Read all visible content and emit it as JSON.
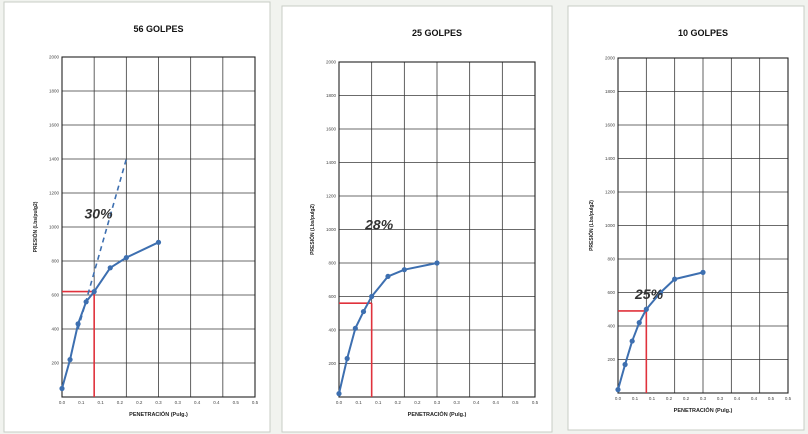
{
  "colors": {
    "curve": "#3d6fb0",
    "reference": "#e0323c",
    "grid": "#3a3a3a"
  },
  "chart_data": [
    {
      "type": "line",
      "title": "56 GOLPES",
      "xlabel": "PENETRACIÓN (Pulg.)",
      "ylabel": "PRESIÓN (Lbs/pulg2)",
      "xlim": [
        0,
        0.6
      ],
      "ylim": [
        0,
        2000
      ],
      "xticks": [
        "0.0",
        "0.1",
        "0.1",
        "0.2",
        "0.2",
        "0.3",
        "0.3",
        "0.4",
        "0.4",
        "0.5",
        "0.5"
      ],
      "yticks": [
        "200",
        "400",
        "600",
        "800",
        "1000",
        "1200",
        "1400",
        "1600",
        "1800",
        "2000"
      ],
      "grid": true,
      "series": [
        {
          "x": [
            0,
            0.025,
            0.05,
            0.075,
            0.1,
            0.15,
            0.2,
            0.3
          ],
          "y": [
            50,
            220,
            430,
            560,
            620,
            760,
            820,
            910
          ]
        }
      ],
      "tangent": {
        "x": [
          0.05,
          0.2
        ],
        "y": [
          400,
          1400
        ]
      },
      "reference": {
        "x": 0.1,
        "y": 620
      },
      "annotation": {
        "text": "30%",
        "x": 0.07,
        "y": 1050
      }
    },
    {
      "type": "line",
      "title": "25 GOLPES",
      "xlabel": "PENETRACIÓN (Pulg.)",
      "ylabel": "PRESIÓN (Lbs/pulg2)",
      "xlim": [
        0,
        0.6
      ],
      "ylim": [
        0,
        2000
      ],
      "xticks": [
        "0.0",
        "0.1",
        "0.1",
        "0.2",
        "0.2",
        "0.3",
        "0.3",
        "0.4",
        "0.4",
        "0.5",
        "0.5"
      ],
      "yticks": [
        "200",
        "400",
        "600",
        "800",
        "1000",
        "1200",
        "1400",
        "1600",
        "1800",
        "2000"
      ],
      "grid": true,
      "series": [
        {
          "x": [
            0,
            0.025,
            0.05,
            0.075,
            0.1,
            0.15,
            0.2,
            0.3
          ],
          "y": [
            20,
            230,
            410,
            510,
            600,
            720,
            760,
            800
          ]
        }
      ],
      "reference": {
        "x": 0.1,
        "y": 560
      },
      "annotation": {
        "text": "28%",
        "x": 0.08,
        "y": 1000
      }
    },
    {
      "type": "line",
      "title": "10 GOLPES",
      "xlabel": "PENETRACIÓN (Pulg.)",
      "ylabel": "PRESIÓN (Lbs/pulg2)",
      "xlim": [
        0,
        0.6
      ],
      "ylim": [
        0,
        2000
      ],
      "xticks": [
        "0.0",
        "0.1",
        "0.1",
        "0.2",
        "0.2",
        "0.3",
        "0.3",
        "0.4",
        "0.4",
        "0.5",
        "0.5"
      ],
      "yticks": [
        "200",
        "400",
        "600",
        "800",
        "1000",
        "1200",
        "1400",
        "1600",
        "1800",
        "2000"
      ],
      "grid": true,
      "series": [
        {
          "x": [
            0,
            0.025,
            0.05,
            0.075,
            0.1,
            0.15,
            0.2,
            0.3
          ],
          "y": [
            20,
            170,
            310,
            420,
            500,
            600,
            680,
            720
          ]
        }
      ],
      "reference": {
        "x": 0.1,
        "y": 490
      },
      "annotation": {
        "text": "25%",
        "x": 0.06,
        "y": 560
      }
    }
  ]
}
